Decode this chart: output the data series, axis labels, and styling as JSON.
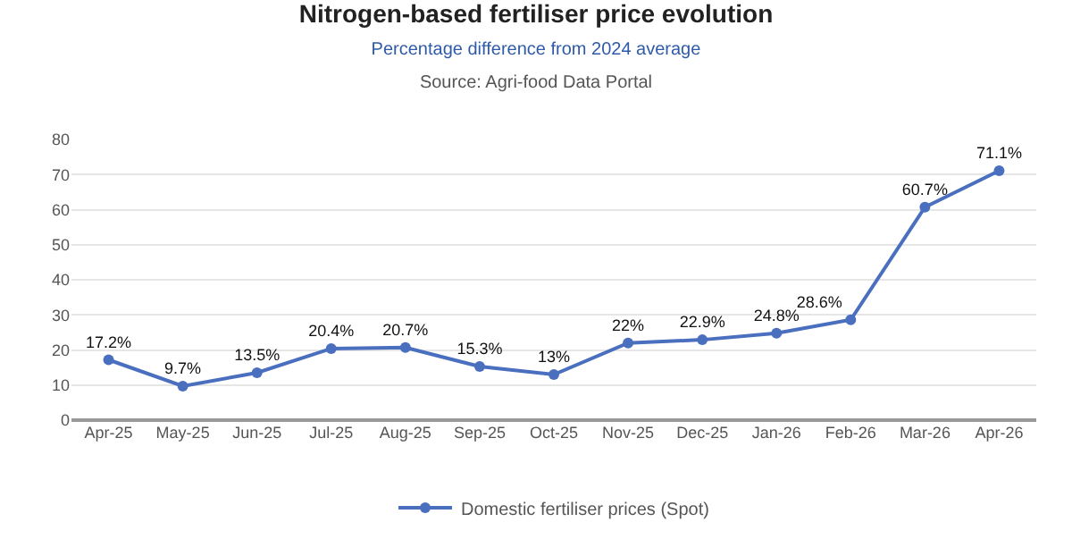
{
  "chart_data": {
    "type": "line",
    "title": "Nitrogen-based fertiliser price evolution",
    "subtitle": "Percentage difference from 2024 average",
    "annotations": [
      "Source: Agri-food Data Portal"
    ],
    "categories": [
      "Apr-25",
      "May-25",
      "Jun-25",
      "Jul-25",
      "Aug-25",
      "Sep-25",
      "Oct-25",
      "Nov-25",
      "Dec-25",
      "Jan-26",
      "Feb-26",
      "Mar-26",
      "Apr-26"
    ],
    "series": [
      {
        "name": "Domestic fertiliser prices (Spot)",
        "color": "#4a6fbf",
        "values": [
          17.2,
          9.7,
          13.5,
          20.4,
          20.7,
          15.3,
          13,
          22,
          22.9,
          24.8,
          28.6,
          60.7,
          71.1
        ],
        "value_labels": [
          "17.2%",
          "9.7%",
          "13.5%",
          "20.4%",
          "20.7%",
          "15.3%",
          "13%",
          "22%",
          "22.9%",
          "24.8%",
          "28.6%",
          "60.7%",
          "71.1%"
        ]
      }
    ],
    "ylim": [
      0,
      80
    ],
    "yticks": [
      0,
      10,
      20,
      30,
      40,
      50,
      60,
      70,
      80
    ],
    "grid": "y",
    "legend": "bottom",
    "marker": "circle",
    "line_style": "solid"
  }
}
